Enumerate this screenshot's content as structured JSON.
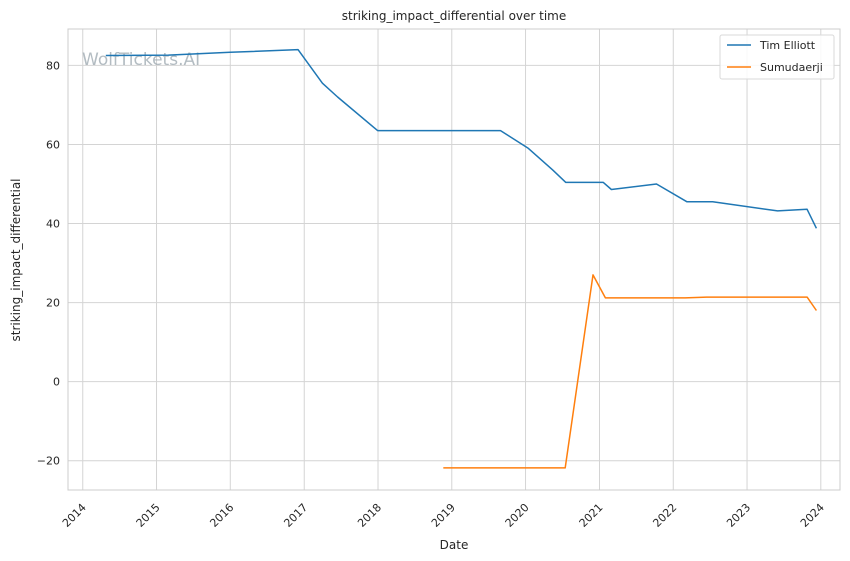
{
  "chart_data": {
    "type": "line",
    "title": "striking_impact_differential over time",
    "xlabel": "Date",
    "ylabel": "striking_impact_differential",
    "watermark": "WolfTickets.AI",
    "x_ticks": [
      "2014",
      "2015",
      "2016",
      "2017",
      "2018",
      "2019",
      "2020",
      "2021",
      "2022",
      "2023",
      "2024"
    ],
    "y_ticks": [
      "-20",
      "0",
      "20",
      "40",
      "60",
      "80"
    ],
    "xlim": [
      "2013-10-20",
      "2024-04-05"
    ],
    "ylim": [
      -27.4,
      89.2
    ],
    "grid": true,
    "legend_position": "top-right",
    "series": [
      {
        "name": "Tim Elliott",
        "color": "#1f77b4",
        "points": [
          [
            "2014-04-25",
            82.5
          ],
          [
            "2015-03-01",
            82.6
          ],
          [
            "2016-01-01",
            83.3
          ],
          [
            "2016-12-01",
            84.0
          ],
          [
            "2017-04-01",
            75.5
          ],
          [
            "2017-06-15",
            72.0
          ],
          [
            "2017-12-30",
            63.5
          ],
          [
            "2019-08-30",
            63.5
          ],
          [
            "2020-01-15",
            59.0
          ],
          [
            "2020-05-15",
            53.5
          ],
          [
            "2020-07-18",
            50.4
          ],
          [
            "2021-01-20",
            50.4
          ],
          [
            "2021-03-01",
            48.6
          ],
          [
            "2021-10-10",
            50.0
          ],
          [
            "2022-03-10",
            45.5
          ],
          [
            "2022-07-15",
            45.5
          ],
          [
            "2023-06-01",
            43.2
          ],
          [
            "2023-10-25",
            43.6
          ],
          [
            "2023-12-10",
            38.8
          ]
        ]
      },
      {
        "name": "Sumudaerji",
        "color": "#ff7f0e",
        "points": [
          [
            "2018-11-20",
            -21.8
          ],
          [
            "2020-07-15",
            -21.8
          ],
          [
            "2020-11-30",
            27.0
          ],
          [
            "2021-01-30",
            21.2
          ],
          [
            "2022-03-01",
            21.2
          ],
          [
            "2022-06-15",
            21.4
          ],
          [
            "2023-10-25",
            21.4
          ],
          [
            "2023-12-10",
            18.0
          ]
        ]
      }
    ]
  }
}
